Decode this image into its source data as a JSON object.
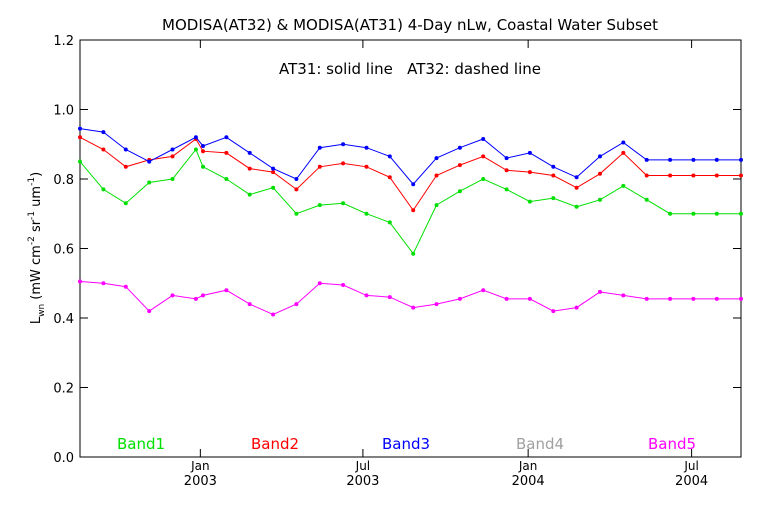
{
  "chart_data": {
    "type": "line",
    "title": "MODISA(AT32) & MODISA(AT31) 4-Day nLw, Coastal Water Subset",
    "annotation": "AT31: solid line   AT32: dashed line",
    "ylabel": "L",
    "ylabel_sub": "wn",
    "ylabel_units": " (mW cm",
    "ylabel_units_sup1": "-2",
    "ylabel_units_mid": " sr",
    "ylabel_units_sup2": "-1",
    "ylabel_units_end": " um",
    "ylabel_units_sup3": "-1",
    "ylabel_units_close": ")",
    "ylim": [
      0.0,
      1.2
    ],
    "y_ticks": [
      {
        "value": 0.0,
        "label": "0.0"
      },
      {
        "value": 0.2,
        "label": "0.2"
      },
      {
        "value": 0.4,
        "label": "0.4"
      },
      {
        "value": 0.6,
        "label": "0.6"
      },
      {
        "value": 0.8,
        "label": "0.8"
      },
      {
        "value": 1.0,
        "label": "1.0"
      },
      {
        "value": 1.2,
        "label": "1.2"
      }
    ],
    "x_range": [
      "2002-08-20",
      "2004-08-25"
    ],
    "x_ticks": [
      {
        "date": "2003-01-01",
        "month": "Jan",
        "year": "2003"
      },
      {
        "date": "2003-07-01",
        "month": "Jul",
        "year": "2003"
      },
      {
        "date": "2004-01-01",
        "month": "Jan",
        "year": "2004"
      },
      {
        "date": "2004-07-01",
        "month": "Jul",
        "year": "2004"
      }
    ],
    "grid": false,
    "legend_position": "bottom",
    "x_dates": [
      "2002-08-20",
      "2002-09-15",
      "2002-10-10",
      "2002-11-05",
      "2002-12-01",
      "2002-12-27",
      "2003-01-04",
      "2003-01-30",
      "2003-02-25",
      "2003-03-23",
      "2003-04-18",
      "2003-05-14",
      "2003-06-09",
      "2003-07-05",
      "2003-07-31",
      "2003-08-26",
      "2003-09-21",
      "2003-10-17",
      "2003-11-12",
      "2003-12-08",
      "2004-01-03",
      "2004-01-29",
      "2004-02-24",
      "2004-03-21",
      "2004-04-16",
      "2004-05-12",
      "2004-06-07",
      "2004-07-03",
      "2004-07-29",
      "2004-08-25"
    ],
    "series": [
      {
        "name": "Band1",
        "color": "#00e000",
        "values": [
          0.85,
          0.77,
          0.73,
          0.79,
          0.8,
          0.885,
          0.835,
          0.8,
          0.755,
          0.775,
          0.7,
          0.725,
          0.73,
          0.7,
          0.675,
          0.585,
          0.725,
          0.765,
          0.8,
          0.77,
          0.735,
          0.745,
          0.72,
          0.74,
          0.78,
          0.74,
          0.7,
          0.7,
          0.7,
          0.7
        ]
      },
      {
        "name": "Band2",
        "color": "#ff0000",
        "values": [
          0.92,
          0.885,
          0.835,
          0.855,
          0.865,
          0.915,
          0.88,
          0.875,
          0.83,
          0.82,
          0.77,
          0.835,
          0.845,
          0.835,
          0.805,
          0.71,
          0.81,
          0.84,
          0.865,
          0.825,
          0.82,
          0.81,
          0.775,
          0.815,
          0.875,
          0.81,
          0.81,
          0.81,
          0.81,
          0.81
        ]
      },
      {
        "name": "Band3",
        "color": "#0000ff",
        "values": [
          0.945,
          0.935,
          0.885,
          0.85,
          0.885,
          0.92,
          0.895,
          0.92,
          0.875,
          0.83,
          0.8,
          0.89,
          0.9,
          0.89,
          0.865,
          0.785,
          0.86,
          0.89,
          0.915,
          0.86,
          0.875,
          0.835,
          0.805,
          0.865,
          0.905,
          0.855,
          0.855,
          0.855,
          0.855,
          0.855
        ]
      },
      {
        "name": "Band4",
        "color": "#a0a0a0",
        "values": []
      },
      {
        "name": "Band5",
        "color": "#ff00ff",
        "values": [
          0.505,
          0.5,
          0.49,
          0.42,
          0.465,
          0.455,
          0.465,
          0.48,
          0.44,
          0.41,
          0.44,
          0.5,
          0.495,
          0.465,
          0.46,
          0.43,
          0.44,
          0.455,
          0.48,
          0.455,
          0.455,
          0.42,
          0.43,
          0.475,
          0.465,
          0.455,
          0.455,
          0.455,
          0.455,
          0.455
        ]
      }
    ]
  }
}
